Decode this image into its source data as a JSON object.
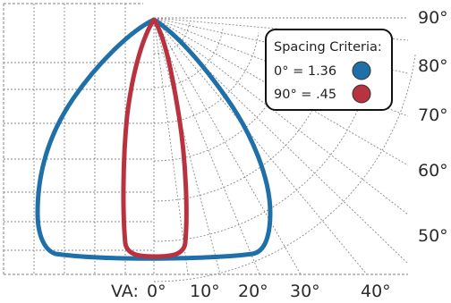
{
  "chart_data": {
    "type": "line",
    "title": "",
    "xlabel": "VA:",
    "ylabel": "",
    "x_ticks": [
      "0°",
      "10°",
      "20°",
      "30°",
      "40°"
    ],
    "y_ticks": [
      "90°",
      "80°",
      "70°",
      "60°",
      "50°"
    ],
    "legend": {
      "title": "Spacing Criteria:",
      "placement": "top-right"
    },
    "series": [
      {
        "name": "0° = 1.36",
        "color": "#1f6fa8",
        "shape": "wide lobe"
      },
      {
        "name": "90° = .45",
        "color": "#b8323f",
        "shape": "narrow lobe"
      }
    ],
    "grid": true
  }
}
